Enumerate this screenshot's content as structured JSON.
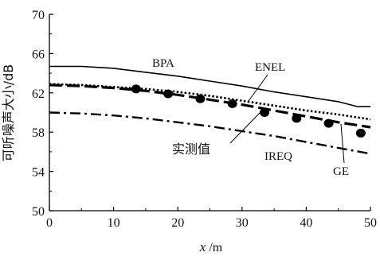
{
  "chart_data": {
    "type": "line",
    "xlabel": "x /m",
    "ylabel": "可听噪声大小/dB",
    "xlim": [
      0,
      50
    ],
    "ylim": [
      50,
      70
    ],
    "xticks": [
      "0",
      "10",
      "20",
      "30",
      "40",
      "50"
    ],
    "yticks": [
      "50",
      "54",
      "58",
      "62",
      "66",
      "70"
    ],
    "grid": false,
    "legend": "none",
    "series": [
      {
        "name": "BPA",
        "style": "solid",
        "color": "#000000",
        "x": [
          0,
          5,
          10,
          15,
          20,
          25,
          30,
          35,
          40,
          45,
          48,
          50
        ],
        "y": [
          64.7,
          64.7,
          64.5,
          64.1,
          63.7,
          63.2,
          62.7,
          62.1,
          61.6,
          61.1,
          60.6,
          60.6
        ]
      },
      {
        "name": "ENEL",
        "style": "dotted",
        "color": "#000000",
        "x": [
          0,
          5,
          10,
          15,
          20,
          25,
          30,
          35,
          40,
          45,
          50
        ],
        "y": [
          62.9,
          62.8,
          62.6,
          62.4,
          62.1,
          61.7,
          61.2,
          60.7,
          60.2,
          59.8,
          59.3
        ]
      },
      {
        "name": "GE",
        "style": "long-dash",
        "color": "#000000",
        "x": [
          0,
          5,
          10,
          15,
          20,
          25,
          30,
          35,
          40,
          45,
          50
        ],
        "y": [
          62.8,
          62.7,
          62.5,
          62.2,
          61.8,
          61.3,
          60.8,
          60.2,
          59.6,
          59.0,
          58.5
        ]
      },
      {
        "name": "IREQ",
        "style": "dash-dot",
        "color": "#000000",
        "x": [
          0,
          5,
          10,
          15,
          20,
          25,
          30,
          35,
          40,
          45,
          50
        ],
        "y": [
          60.0,
          59.9,
          59.7,
          59.4,
          59.0,
          58.6,
          58.1,
          57.6,
          57.0,
          56.4,
          55.8
        ]
      },
      {
        "name": "实测值",
        "style": "markers",
        "color": "#000000",
        "x": [
          13.5,
          18.5,
          23.5,
          28.5,
          33.5,
          38.5,
          43.5,
          48.5
        ],
        "y": [
          62.4,
          61.9,
          61.4,
          60.9,
          60.0,
          59.4,
          58.9,
          57.9
        ]
      }
    ]
  }
}
